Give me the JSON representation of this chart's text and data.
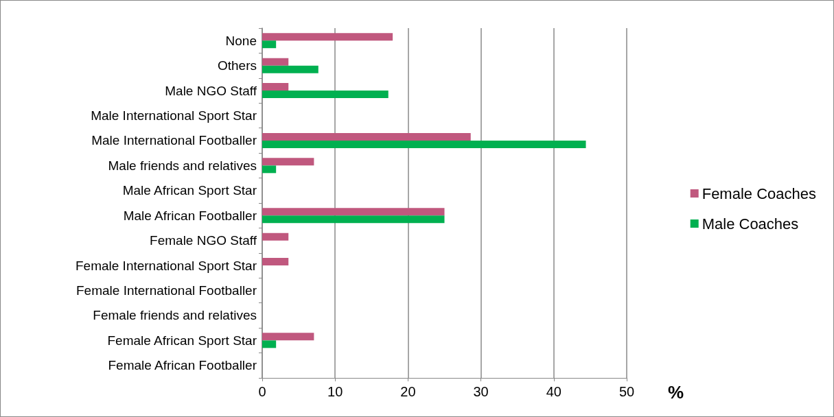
{
  "chart_data": {
    "type": "bar",
    "orientation": "horizontal",
    "xlabel": "%",
    "categories": [
      "None",
      "Others",
      "Male NGO Staff",
      "Male International Sport Star",
      "Male International Footballer",
      "Male friends and relatives",
      "Male African Sport Star",
      "Male African Footballer",
      "Female NGO Staff",
      "Female International Sport Star",
      "Female International Footballer",
      "Female friends and relatives",
      "Female African Sport Star",
      "Female African Footballer"
    ],
    "series": [
      {
        "name": "Female Coaches",
        "color": "#c0587e",
        "values": [
          17.9,
          3.6,
          3.6,
          0,
          28.6,
          7.1,
          0,
          25,
          3.6,
          3.6,
          0,
          0,
          7.1,
          0
        ]
      },
      {
        "name": "Male Coaches",
        "color": "#00b050",
        "values": [
          1.9,
          7.7,
          17.3,
          0,
          44.4,
          1.9,
          0,
          25,
          0,
          0,
          0,
          0,
          1.9,
          0
        ]
      }
    ],
    "xlim": [
      0,
      50
    ],
    "xticks": [
      0,
      10,
      20,
      30,
      40,
      50
    ],
    "grid": "x",
    "legend": "right"
  }
}
